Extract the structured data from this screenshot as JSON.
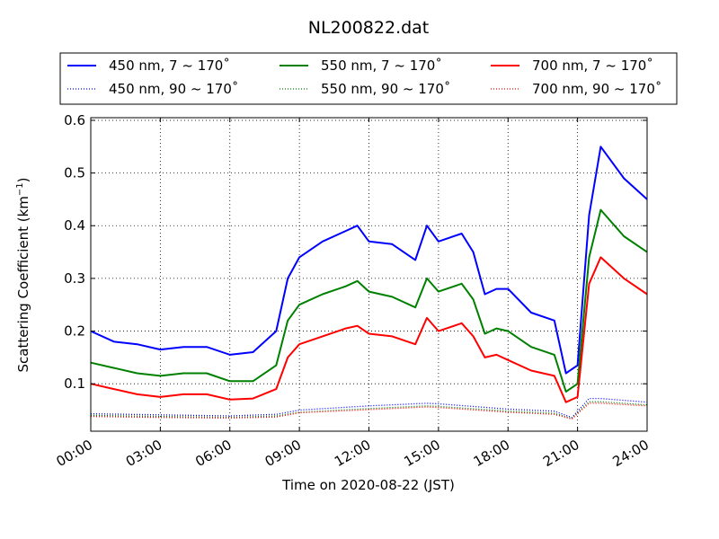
{
  "chart_data": {
    "type": "line",
    "title": "NL200822.dat",
    "xlabel": "Time on 2020-08-22 (JST)",
    "ylabel": "Scattering Coefficient (km",
    "ylabel_sup": "−1",
    "ylabel_close": ")",
    "xlim": [
      "2020-08-22 00:00",
      "2020-08-23 00:00"
    ],
    "ylim": [
      0.01,
      0.605
    ],
    "grid": true,
    "legend_position": "top",
    "x_ticks": [
      "00:00",
      "03:00",
      "06:00",
      "09:00",
      "12:00",
      "15:00",
      "18:00",
      "21:00",
      "24:00"
    ],
    "y_ticks": [
      "0.1",
      "0.2",
      "0.3",
      "0.4",
      "0.5",
      "0.6"
    ],
    "series": [
      {
        "name": "450 nm, 7 ~ 170˚",
        "color": "#0000ff",
        "style": "solid",
        "x": [
          "00:00",
          "01:00",
          "02:00",
          "03:00",
          "04:00",
          "05:00",
          "06:00",
          "07:00",
          "08:00",
          "08:30",
          "09:00",
          "10:00",
          "11:00",
          "11:30",
          "12:00",
          "13:00",
          "14:00",
          "14:30",
          "15:00",
          "16:00",
          "16:30",
          "17:00",
          "17:30",
          "18:00",
          "19:00",
          "20:00",
          "20:30",
          "21:00",
          "21:30",
          "22:00",
          "23:00",
          "24:00"
        ],
        "y": [
          0.2,
          0.18,
          0.175,
          0.165,
          0.17,
          0.17,
          0.155,
          0.16,
          0.2,
          0.3,
          0.34,
          0.37,
          0.39,
          0.4,
          0.37,
          0.365,
          0.335,
          0.4,
          0.37,
          0.385,
          0.35,
          0.27,
          0.28,
          0.28,
          0.235,
          0.22,
          0.12,
          0.135,
          0.42,
          0.55,
          0.49,
          0.45
        ]
      },
      {
        "name": "550 nm, 7 ~ 170˚",
        "color": "#008000",
        "style": "solid",
        "x": [
          "00:00",
          "01:00",
          "02:00",
          "03:00",
          "04:00",
          "05:00",
          "06:00",
          "07:00",
          "08:00",
          "08:30",
          "09:00",
          "10:00",
          "11:00",
          "11:30",
          "12:00",
          "13:00",
          "14:00",
          "14:30",
          "15:00",
          "16:00",
          "16:30",
          "17:00",
          "17:30",
          "18:00",
          "19:00",
          "20:00",
          "20:30",
          "21:00",
          "21:30",
          "22:00",
          "23:00",
          "24:00"
        ],
        "y": [
          0.14,
          0.13,
          0.12,
          0.115,
          0.12,
          0.12,
          0.105,
          0.105,
          0.135,
          0.22,
          0.25,
          0.27,
          0.285,
          0.295,
          0.275,
          0.265,
          0.245,
          0.3,
          0.275,
          0.29,
          0.26,
          0.195,
          0.205,
          0.2,
          0.17,
          0.155,
          0.085,
          0.1,
          0.34,
          0.43,
          0.38,
          0.35
        ]
      },
      {
        "name": "700 nm, 7 ~ 170˚",
        "color": "#ff0000",
        "style": "solid",
        "x": [
          "00:00",
          "01:00",
          "02:00",
          "03:00",
          "04:00",
          "05:00",
          "06:00",
          "07:00",
          "08:00",
          "08:30",
          "09:00",
          "10:00",
          "11:00",
          "11:30",
          "12:00",
          "13:00",
          "14:00",
          "14:30",
          "15:00",
          "16:00",
          "16:30",
          "17:00",
          "17:30",
          "18:00",
          "19:00",
          "20:00",
          "20:30",
          "21:00",
          "21:30",
          "22:00",
          "23:00",
          "24:00"
        ],
        "y": [
          0.1,
          0.09,
          0.08,
          0.075,
          0.08,
          0.08,
          0.07,
          0.072,
          0.09,
          0.15,
          0.175,
          0.19,
          0.205,
          0.21,
          0.195,
          0.19,
          0.175,
          0.225,
          0.2,
          0.215,
          0.19,
          0.15,
          0.155,
          0.145,
          0.125,
          0.115,
          0.065,
          0.075,
          0.29,
          0.34,
          0.3,
          0.27
        ]
      },
      {
        "name": "450 nm, 90 ~ 170˚",
        "color": "#0000ff",
        "style": "dotted",
        "x": [
          "00:00",
          "03:00",
          "06:00",
          "08:00",
          "09:00",
          "12:00",
          "14:30",
          "15:00",
          "18:00",
          "20:00",
          "20:45",
          "21:30",
          "22:00",
          "24:00"
        ],
        "y": [
          0.043,
          0.041,
          0.039,
          0.042,
          0.05,
          0.058,
          0.063,
          0.062,
          0.052,
          0.048,
          0.036,
          0.072,
          0.072,
          0.065
        ]
      },
      {
        "name": "550 nm, 90 ~ 170˚",
        "color": "#008000",
        "style": "dotted",
        "x": [
          "00:00",
          "03:00",
          "06:00",
          "08:00",
          "09:00",
          "12:00",
          "14:30",
          "15:00",
          "18:00",
          "20:00",
          "20:45",
          "21:30",
          "22:00",
          "24:00"
        ],
        "y": [
          0.04,
          0.038,
          0.036,
          0.039,
          0.046,
          0.053,
          0.058,
          0.057,
          0.048,
          0.044,
          0.034,
          0.066,
          0.066,
          0.06
        ]
      },
      {
        "name": "700 nm, 90 ~ 170˚",
        "color": "#ff0000",
        "style": "dotted",
        "x": [
          "00:00",
          "03:00",
          "06:00",
          "08:00",
          "09:00",
          "12:00",
          "14:30",
          "15:00",
          "18:00",
          "20:00",
          "20:45",
          "21:30",
          "22:00",
          "24:00"
        ],
        "y": [
          0.038,
          0.036,
          0.035,
          0.037,
          0.045,
          0.051,
          0.056,
          0.055,
          0.046,
          0.042,
          0.033,
          0.063,
          0.063,
          0.058
        ]
      }
    ]
  }
}
